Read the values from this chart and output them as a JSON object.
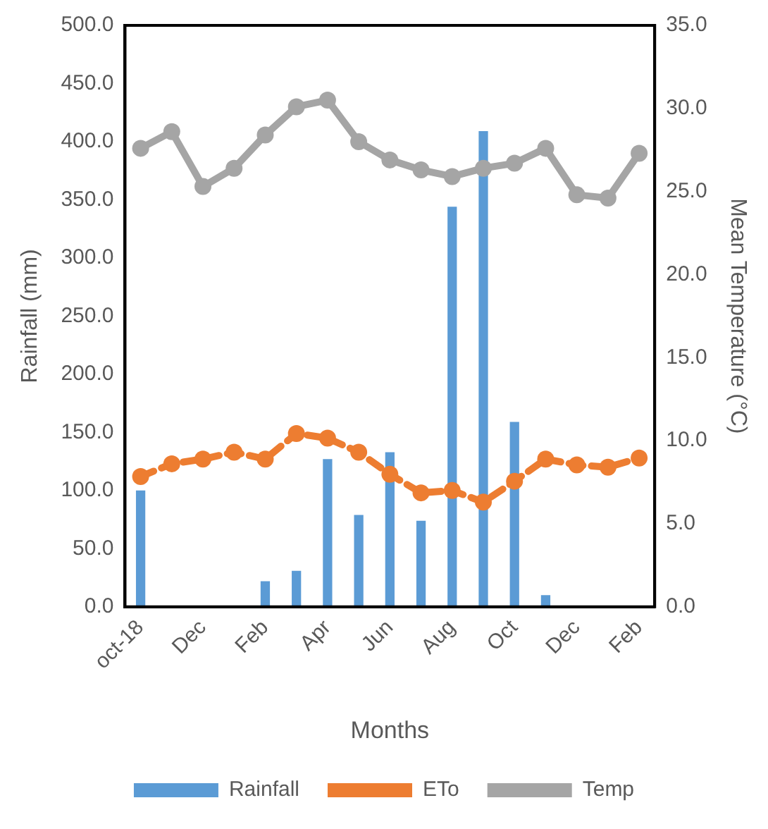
{
  "chart_data": {
    "type": "bar",
    "xlabel": "Months",
    "ylabel": "Rainfall (mm)",
    "y2label": "Mean Temperature (°C)",
    "categories": [
      "oct-18",
      null,
      "Dec",
      null,
      "Feb",
      null,
      "Apr",
      null,
      "Jun",
      null,
      "Aug",
      null,
      "Oct",
      null,
      "Dec",
      null,
      "Feb"
    ],
    "series": [
      {
        "name": "Rainfall",
        "color": "#5b9bd5",
        "values": [
          100,
          0,
          0,
          0,
          22,
          31,
          127,
          79,
          133,
          74,
          344,
          409,
          159,
          10,
          0,
          0,
          0
        ]
      },
      {
        "name": "ETo",
        "type": "line",
        "color": "#ed7d31",
        "line_style": "dashed",
        "marker": "circle",
        "values": [
          112,
          123,
          127,
          133,
          127,
          149,
          145,
          133,
          114,
          98,
          100,
          90,
          108,
          127,
          122,
          120,
          128
        ]
      },
      {
        "name": "Temp",
        "type": "line",
        "axis": "y2",
        "color": "#a5a5a5",
        "marker": "circle",
        "values": [
          27.6,
          28.6,
          25.3,
          26.4,
          28.4,
          30.1,
          30.5,
          28.0,
          26.9,
          26.3,
          25.9,
          26.4,
          26.7,
          27.6,
          24.8,
          24.6,
          27.3
        ]
      }
    ],
    "ylim": [
      0,
      500
    ],
    "yticks": [
      {
        "value": 0,
        "label": "0.0"
      },
      {
        "value": 50,
        "label": "50.0"
      },
      {
        "value": 100,
        "label": "100.0"
      },
      {
        "value": 150,
        "label": "150.0"
      },
      {
        "value": 200,
        "label": "200.0"
      },
      {
        "value": 250,
        "label": "250.0"
      },
      {
        "value": 300,
        "label": "300.0"
      },
      {
        "value": 350,
        "label": "350.0"
      },
      {
        "value": 400,
        "label": "400.0"
      },
      {
        "value": 450,
        "label": "450.0"
      },
      {
        "value": 500,
        "label": "500.0"
      }
    ],
    "y2lim": [
      0,
      35
    ],
    "y2ticks": [
      {
        "value": 0,
        "label": "0.0"
      },
      {
        "value": 5,
        "label": "5.0"
      },
      {
        "value": 10,
        "label": "10.0"
      },
      {
        "value": 15,
        "label": "15.0"
      },
      {
        "value": 20,
        "label": "20.0"
      },
      {
        "value": 25,
        "label": "25.0"
      },
      {
        "value": 30,
        "label": "30.0"
      },
      {
        "value": 35,
        "label": "35.0"
      }
    ],
    "grid": false,
    "legend": "bottom"
  }
}
